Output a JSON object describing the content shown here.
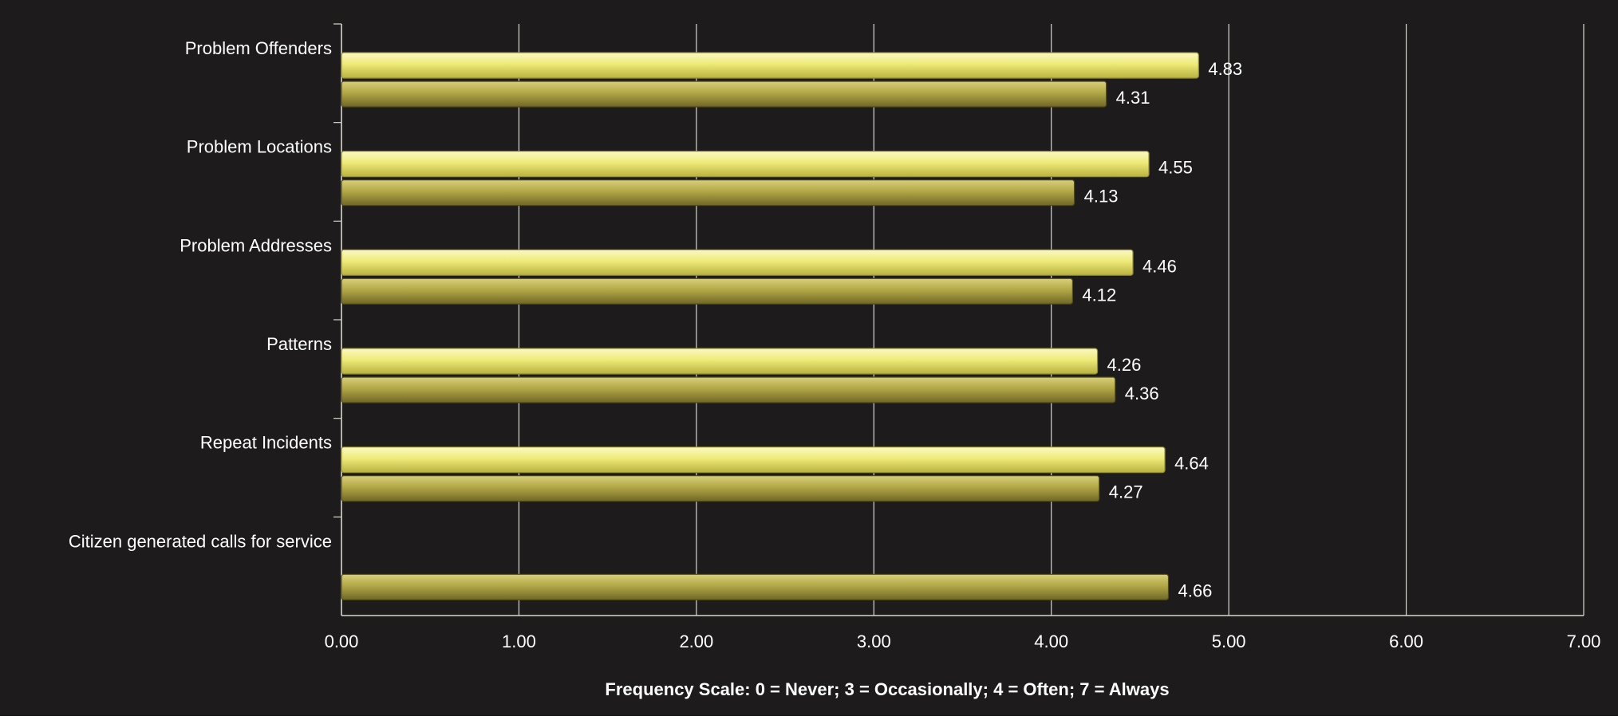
{
  "chart_data": {
    "type": "bar",
    "orientation": "horizontal",
    "categories": [
      "Problem Offenders",
      "Problem Locations",
      "Problem Addresses",
      "Patterns",
      "Repeat Incidents",
      "Citizen generated calls for service"
    ],
    "series": [
      {
        "color": "#eeea78",
        "values": [
          4.83,
          4.55,
          4.46,
          4.26,
          4.64,
          null
        ]
      },
      {
        "color": "#b2a746",
        "values": [
          4.31,
          4.13,
          4.12,
          4.36,
          4.27,
          4.66
        ]
      }
    ],
    "data_labels": [
      [
        "4.83",
        "4.55",
        "4.46",
        "4.26",
        "4.64",
        ""
      ],
      [
        "4.31",
        "4.13",
        "4.12",
        "4.36",
        "4.27",
        "4.66"
      ]
    ],
    "x_ticks": [
      "0.00",
      "1.00",
      "2.00",
      "3.00",
      "4.00",
      "5.00",
      "6.00",
      "7.00"
    ],
    "xlim": [
      0,
      7
    ],
    "xlabel": "Frequency Scale: 0 = Never; 3 = Occasionally; 4 = Often; 7 = Always",
    "title": "",
    "grid": true,
    "legend": "none",
    "colors": {
      "plot_background": "#1e1b1d",
      "gridline": "#d9d6cf",
      "text": "#ffffff"
    }
  }
}
